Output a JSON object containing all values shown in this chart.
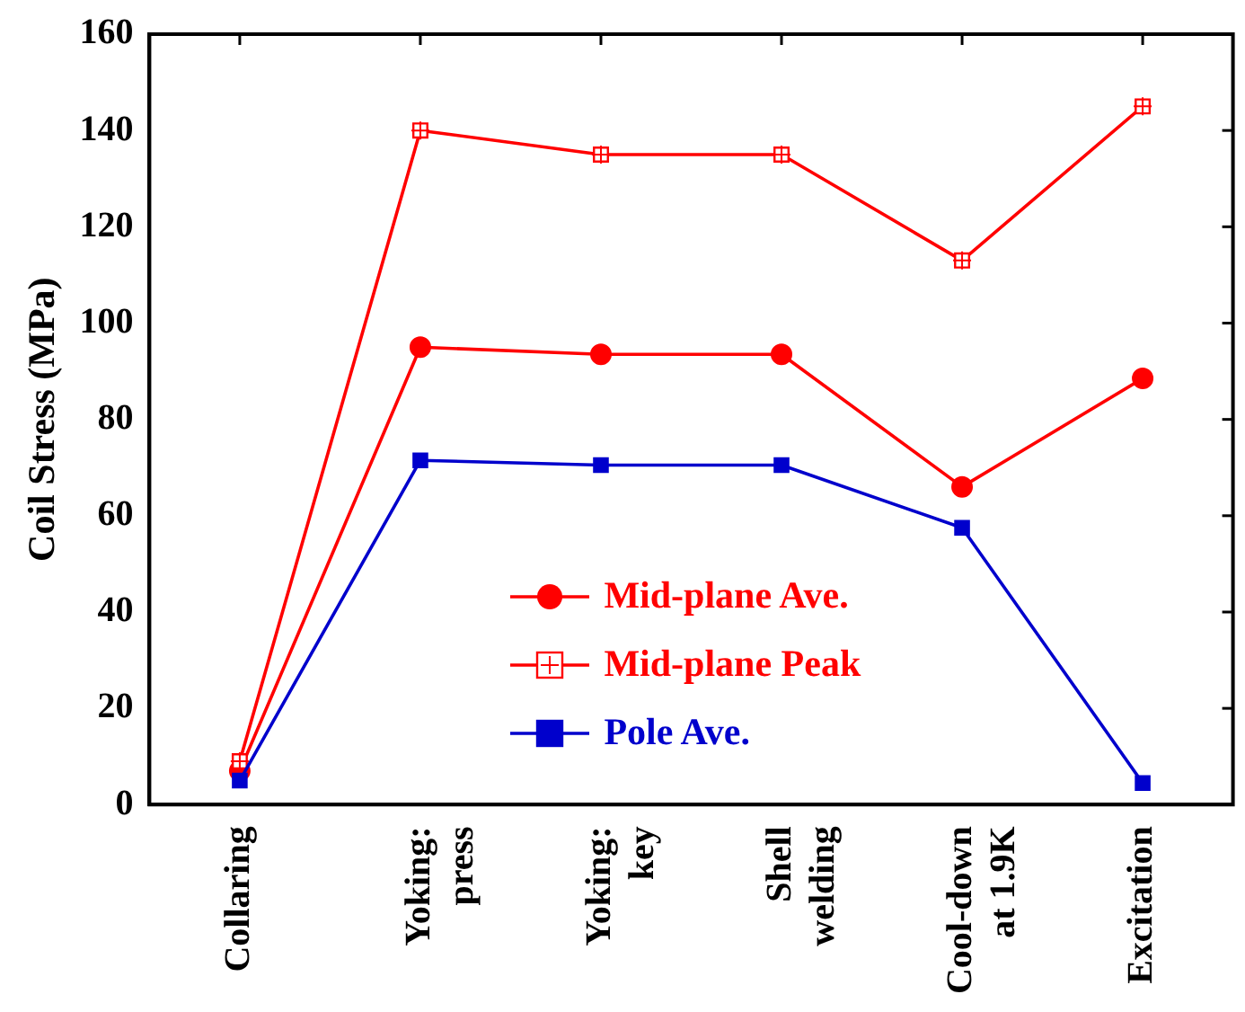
{
  "chart_data": {
    "type": "line",
    "ylabel": "Coil Stress (MPa)",
    "categories": [
      "Collaring",
      "Yoking:\npress",
      "Yoking:\nkey",
      "Shell\nwelding",
      "Cool-down\nat 1.9K",
      "Excitation"
    ],
    "series": [
      {
        "name": "Mid-plane Ave.",
        "color": "#ff0000",
        "marker": "circle",
        "values": [
          7,
          95,
          93.5,
          93.5,
          66,
          88.5
        ]
      },
      {
        "name": "Mid-plane Peak",
        "color": "#ff0000",
        "marker": "square",
        "values": [
          9,
          140,
          135,
          135,
          113,
          145
        ]
      },
      {
        "name": "Pole Ave.",
        "color": "#0000cc",
        "marker": "square",
        "values": [
          5,
          71.5,
          70.5,
          70.5,
          57.5,
          4.5
        ]
      }
    ],
    "ylim": [
      0,
      160
    ],
    "yticks": [
      0,
      20,
      40,
      60,
      80,
      100,
      120,
      140,
      160
    ],
    "grid": false,
    "legend": "bottom",
    "line_style": "solid"
  }
}
